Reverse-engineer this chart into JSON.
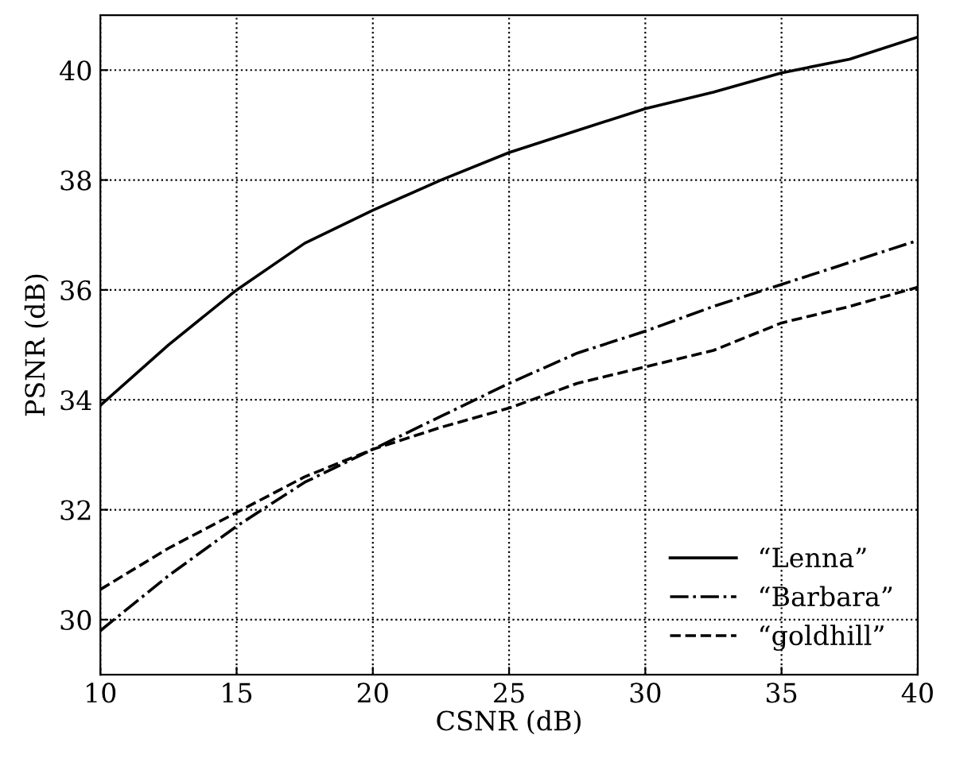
{
  "chart_data": {
    "type": "line",
    "xlabel": "CSNR (dB)",
    "ylabel": "PSNR (dB)",
    "x": [
      10,
      12.5,
      15,
      17.5,
      20,
      22.5,
      25,
      27.5,
      30,
      32.5,
      35,
      37.5,
      40
    ],
    "series": [
      {
        "name": "“Lenna”",
        "color": "#000000",
        "line_style": "solid",
        "values": [
          33.9,
          35.0,
          36.0,
          36.85,
          37.45,
          38.0,
          38.5,
          38.9,
          39.3,
          39.6,
          39.95,
          40.2,
          40.6
        ]
      },
      {
        "name": "“Barbara”",
        "color": "#000000",
        "line_style": "dashdot",
        "values": [
          29.8,
          30.8,
          31.7,
          32.5,
          33.1,
          33.7,
          34.3,
          34.85,
          35.25,
          35.7,
          36.1,
          36.5,
          36.9
        ]
      },
      {
        "name": "“goldhill”",
        "color": "#000000",
        "line_style": "dashed",
        "values": [
          30.55,
          31.3,
          31.95,
          32.6,
          33.1,
          33.5,
          33.85,
          34.3,
          34.6,
          34.9,
          35.4,
          35.7,
          36.05
        ]
      }
    ],
    "xlim": [
      10,
      40
    ],
    "xticks": [
      10,
      15,
      20,
      25,
      30,
      35,
      40
    ],
    "ylim": [
      29,
      41
    ],
    "yticks": [
      30,
      32,
      34,
      36,
      38,
      40
    ],
    "grid": true,
    "legend": "bottom right"
  }
}
